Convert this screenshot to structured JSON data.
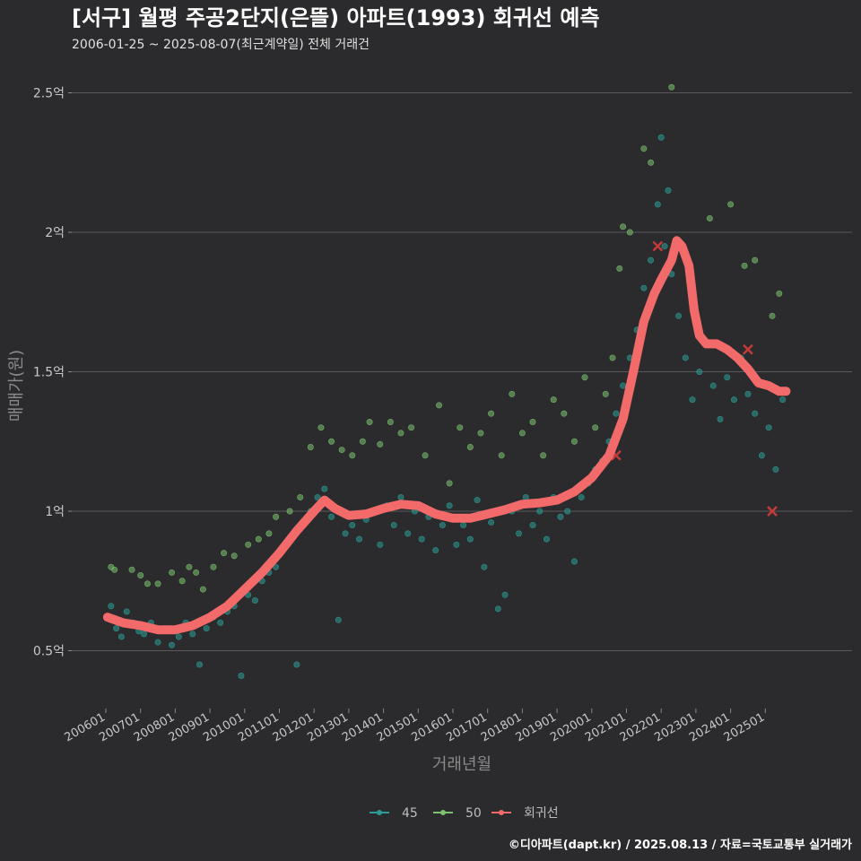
{
  "chart_data": {
    "type": "scatter",
    "title": "[서구] 월평 주공2단지(은뜰) 아파트(1993) 회귀선 예측",
    "subtitle": "2006-01-25 ~ 2025-08-07(최근계약일) 전체 거래건",
    "xlabel": "거래년월",
    "ylabel": "매매가(원)",
    "footer": "©디아파트(dapt.kr) / 2025.08.13 / 자료=국토교통부 실거래가",
    "x_ticks": [
      "200601",
      "200701",
      "200801",
      "200901",
      "201001",
      "201101",
      "201201",
      "201301",
      "201401",
      "201501",
      "201601",
      "201701",
      "201801",
      "201901",
      "202001",
      "202101",
      "202201",
      "202301",
      "202401",
      "202501"
    ],
    "y_ticks": [
      {
        "value": 0.5,
        "label": "0.5억"
      },
      {
        "value": 1.0,
        "label": "1억"
      },
      {
        "value": 1.5,
        "label": "1.5억"
      },
      {
        "value": 2.0,
        "label": "2억"
      },
      {
        "value": 2.5,
        "label": "2.5억"
      }
    ],
    "xlim": [
      2005.9,
      2025.9
    ],
    "ylim": [
      0.25,
      2.6
    ],
    "y_unit": "억 원",
    "grid": true,
    "legend_position": "bottom",
    "colors": {
      "s45": "#2a9d96",
      "s50": "#7cc26e",
      "regression": "#f26a6a",
      "outlier": "#c23a3a"
    },
    "series": [
      {
        "name": "45",
        "points": [
          [
            2006.05,
            0.62
          ],
          [
            2006.15,
            0.66
          ],
          [
            2006.3,
            0.58
          ],
          [
            2006.45,
            0.55
          ],
          [
            2006.6,
            0.64
          ],
          [
            2006.8,
            0.6
          ],
          [
            2006.95,
            0.57
          ],
          [
            2007.1,
            0.56
          ],
          [
            2007.3,
            0.6
          ],
          [
            2007.5,
            0.53
          ],
          [
            2007.7,
            0.58
          ],
          [
            2007.9,
            0.52
          ],
          [
            2008.1,
            0.55
          ],
          [
            2008.3,
            0.6
          ],
          [
            2008.5,
            0.56
          ],
          [
            2008.7,
            0.45
          ],
          [
            2008.9,
            0.58
          ],
          [
            2009.1,
            0.62
          ],
          [
            2009.3,
            0.6
          ],
          [
            2009.5,
            0.64
          ],
          [
            2009.7,
            0.66
          ],
          [
            2009.9,
            0.41
          ],
          [
            2010.1,
            0.7
          ],
          [
            2010.3,
            0.68
          ],
          [
            2010.5,
            0.75
          ],
          [
            2010.7,
            0.78
          ],
          [
            2010.9,
            0.8
          ],
          [
            2011.1,
            0.86
          ],
          [
            2011.3,
            0.9
          ],
          [
            2011.5,
            0.45
          ],
          [
            2011.7,
            0.96
          ],
          [
            2011.9,
            1.0
          ],
          [
            2012.1,
            1.05
          ],
          [
            2012.3,
            1.08
          ],
          [
            2012.5,
            0.98
          ],
          [
            2012.7,
            0.61
          ],
          [
            2012.9,
            0.92
          ],
          [
            2013.1,
            0.95
          ],
          [
            2013.3,
            0.9
          ],
          [
            2013.5,
            0.97
          ],
          [
            2013.7,
            1.0
          ],
          [
            2013.9,
            0.88
          ],
          [
            2014.1,
            1.02
          ],
          [
            2014.3,
            0.95
          ],
          [
            2014.5,
            1.05
          ],
          [
            2014.7,
            0.92
          ],
          [
            2014.9,
            1.0
          ],
          [
            2015.1,
            0.9
          ],
          [
            2015.3,
            0.98
          ],
          [
            2015.5,
            0.86
          ],
          [
            2015.7,
            0.95
          ],
          [
            2015.9,
            1.02
          ],
          [
            2016.1,
            0.88
          ],
          [
            2016.3,
            0.95
          ],
          [
            2016.5,
            0.9
          ],
          [
            2016.7,
            1.04
          ],
          [
            2016.9,
            0.8
          ],
          [
            2017.1,
            0.96
          ],
          [
            2017.3,
            0.65
          ],
          [
            2017.5,
            0.7
          ],
          [
            2017.7,
            1.0
          ],
          [
            2017.9,
            0.92
          ],
          [
            2018.1,
            1.05
          ],
          [
            2018.3,
            0.95
          ],
          [
            2018.5,
            1.0
          ],
          [
            2018.7,
            0.9
          ],
          [
            2018.9,
            1.05
          ],
          [
            2019.1,
            0.98
          ],
          [
            2019.3,
            1.0
          ],
          [
            2019.5,
            0.82
          ],
          [
            2019.7,
            1.05
          ],
          [
            2019.9,
            1.1
          ],
          [
            2020.1,
            1.15
          ],
          [
            2020.3,
            1.18
          ],
          [
            2020.5,
            1.25
          ],
          [
            2020.7,
            1.35
          ],
          [
            2020.9,
            1.45
          ],
          [
            2021.1,
            1.55
          ],
          [
            2021.3,
            1.65
          ],
          [
            2021.5,
            1.8
          ],
          [
            2021.7,
            1.9
          ],
          [
            2021.9,
            2.1
          ],
          [
            2022.0,
            2.34
          ],
          [
            2022.1,
            1.95
          ],
          [
            2022.2,
            2.15
          ],
          [
            2022.3,
            1.85
          ],
          [
            2022.5,
            1.7
          ],
          [
            2022.7,
            1.55
          ],
          [
            2022.9,
            1.4
          ],
          [
            2023.1,
            1.5
          ],
          [
            2023.3,
            1.6
          ],
          [
            2023.5,
            1.45
          ],
          [
            2023.7,
            1.33
          ],
          [
            2023.9,
            1.48
          ],
          [
            2024.1,
            1.4
          ],
          [
            2024.3,
            1.55
          ],
          [
            2024.5,
            1.42
          ],
          [
            2024.7,
            1.35
          ],
          [
            2024.9,
            1.2
          ],
          [
            2025.1,
            1.3
          ],
          [
            2025.3,
            1.15
          ],
          [
            2025.5,
            1.4
          ]
        ]
      },
      {
        "name": "50",
        "points": [
          [
            2006.15,
            0.8
          ],
          [
            2006.25,
            0.79
          ],
          [
            2006.75,
            0.79
          ],
          [
            2007.0,
            0.77
          ],
          [
            2007.2,
            0.74
          ],
          [
            2007.5,
            0.74
          ],
          [
            2007.9,
            0.78
          ],
          [
            2008.2,
            0.75
          ],
          [
            2008.4,
            0.8
          ],
          [
            2008.6,
            0.78
          ],
          [
            2008.8,
            0.72
          ],
          [
            2009.1,
            0.8
          ],
          [
            2009.4,
            0.85
          ],
          [
            2009.7,
            0.84
          ],
          [
            2010.1,
            0.88
          ],
          [
            2010.4,
            0.9
          ],
          [
            2010.7,
            0.92
          ],
          [
            2010.9,
            0.98
          ],
          [
            2011.3,
            1.0
          ],
          [
            2011.6,
            1.05
          ],
          [
            2011.9,
            1.23
          ],
          [
            2012.2,
            1.3
          ],
          [
            2012.5,
            1.25
          ],
          [
            2012.8,
            1.22
          ],
          [
            2013.1,
            1.2
          ],
          [
            2013.4,
            1.25
          ],
          [
            2013.6,
            1.32
          ],
          [
            2013.9,
            1.24
          ],
          [
            2014.2,
            1.32
          ],
          [
            2014.5,
            1.28
          ],
          [
            2014.8,
            1.3
          ],
          [
            2015.2,
            1.2
          ],
          [
            2015.6,
            1.38
          ],
          [
            2015.9,
            1.1
          ],
          [
            2016.2,
            1.3
          ],
          [
            2016.5,
            1.23
          ],
          [
            2016.8,
            1.28
          ],
          [
            2017.1,
            1.35
          ],
          [
            2017.4,
            1.2
          ],
          [
            2017.7,
            1.42
          ],
          [
            2018.0,
            1.28
          ],
          [
            2018.3,
            1.32
          ],
          [
            2018.6,
            1.2
          ],
          [
            2018.9,
            1.4
          ],
          [
            2019.2,
            1.35
          ],
          [
            2019.5,
            1.25
          ],
          [
            2019.8,
            1.48
          ],
          [
            2020.1,
            1.3
          ],
          [
            2020.4,
            1.42
          ],
          [
            2020.6,
            1.55
          ],
          [
            2020.8,
            1.87
          ],
          [
            2020.9,
            2.02
          ],
          [
            2021.1,
            2.0
          ],
          [
            2021.5,
            2.3
          ],
          [
            2021.7,
            2.25
          ],
          [
            2022.3,
            2.52
          ],
          [
            2023.4,
            2.05
          ],
          [
            2024.0,
            2.1
          ],
          [
            2024.4,
            1.88
          ],
          [
            2024.7,
            1.9
          ],
          [
            2025.2,
            1.7
          ],
          [
            2025.4,
            1.78
          ]
        ]
      }
    ],
    "regression": {
      "name": "회귀선",
      "points": [
        [
          2006.05,
          0.62
        ],
        [
          2006.5,
          0.6
        ],
        [
          2007.0,
          0.59
        ],
        [
          2007.5,
          0.575
        ],
        [
          2008.0,
          0.575
        ],
        [
          2008.5,
          0.59
        ],
        [
          2009.0,
          0.62
        ],
        [
          2009.5,
          0.66
        ],
        [
          2010.0,
          0.72
        ],
        [
          2010.5,
          0.78
        ],
        [
          2011.0,
          0.85
        ],
        [
          2011.5,
          0.93
        ],
        [
          2012.0,
          1.0
        ],
        [
          2012.3,
          1.04
        ],
        [
          2012.6,
          1.01
        ],
        [
          2013.0,
          0.985
        ],
        [
          2013.5,
          0.99
        ],
        [
          2014.0,
          1.01
        ],
        [
          2014.5,
          1.025
        ],
        [
          2015.0,
          1.02
        ],
        [
          2015.5,
          0.99
        ],
        [
          2016.0,
          0.975
        ],
        [
          2016.5,
          0.975
        ],
        [
          2017.0,
          0.99
        ],
        [
          2017.5,
          1.005
        ],
        [
          2018.0,
          1.025
        ],
        [
          2018.5,
          1.03
        ],
        [
          2019.0,
          1.04
        ],
        [
          2019.5,
          1.07
        ],
        [
          2020.0,
          1.12
        ],
        [
          2020.5,
          1.2
        ],
        [
          2020.9,
          1.33
        ],
        [
          2021.2,
          1.5
        ],
        [
          2021.5,
          1.68
        ],
        [
          2021.8,
          1.78
        ],
        [
          2022.0,
          1.83
        ],
        [
          2022.3,
          1.9
        ],
        [
          2022.45,
          1.97
        ],
        [
          2022.6,
          1.95
        ],
        [
          2022.8,
          1.88
        ],
        [
          2022.95,
          1.72
        ],
        [
          2023.1,
          1.63
        ],
        [
          2023.3,
          1.6
        ],
        [
          2023.6,
          1.6
        ],
        [
          2023.9,
          1.58
        ],
        [
          2024.2,
          1.55
        ],
        [
          2024.5,
          1.51
        ],
        [
          2024.8,
          1.46
        ],
        [
          2025.1,
          1.45
        ],
        [
          2025.4,
          1.43
        ],
        [
          2025.6,
          1.43
        ]
      ]
    },
    "outliers": [
      [
        2020.7,
        1.2
      ],
      [
        2021.9,
        1.95
      ],
      [
        2024.5,
        1.58
      ],
      [
        2025.2,
        1.0
      ]
    ],
    "legend": [
      {
        "key": "s45",
        "label": "45"
      },
      {
        "key": "s50",
        "label": "50"
      },
      {
        "key": "regression",
        "label": "회귀선"
      }
    ]
  }
}
